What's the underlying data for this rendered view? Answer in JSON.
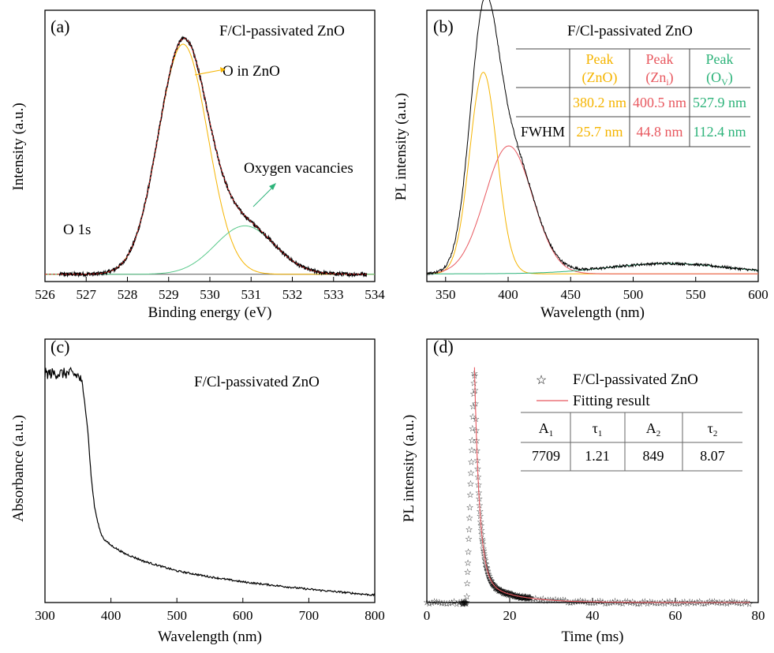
{
  "colors": {
    "black": "#000000",
    "orange": "#f5b400",
    "red": "#e8585f",
    "green": "#2db37a",
    "lightgreen": "#58c98a",
    "gray": "#555555",
    "darkred": "#cc2020"
  },
  "chart_data": [
    {
      "panel": "(a)",
      "type": "line",
      "title": "F/Cl-passivated ZnO",
      "xlabel": "Binding energy (eV)",
      "ylabel": "Intensity (a.u.)",
      "xlim": [
        526,
        534
      ],
      "ylim": [
        0,
        1.12
      ],
      "xticks": [
        526,
        527,
        528,
        529,
        530,
        531,
        532,
        533,
        534
      ],
      "annotations": {
        "o1s": "O 1s",
        "o_in_zno": "O in ZnO",
        "oxygen_vac": "Oxygen vacancies"
      },
      "components": [
        {
          "role": "O in ZnO",
          "color": "orange",
          "center": 529.35,
          "sigma": 0.6,
          "amp": 0.95
        },
        {
          "role": "Oxygen vacancies",
          "color": "lightgreen",
          "center": 530.85,
          "sigma": 0.72,
          "amp": 0.2
        }
      ],
      "baseline": 0.03,
      "series": [
        {
          "color": "black",
          "style": "noisy",
          "sum_of": [
            0,
            1
          ]
        },
        {
          "color": "darkred",
          "style": "dashed",
          "sum_of": [
            0,
            1
          ]
        }
      ]
    },
    {
      "panel": "(b)",
      "type": "line",
      "title": "F/Cl-passivated ZnO",
      "xlabel": "Wavelength (nm)",
      "ylabel": "PL intensity (a.u.)",
      "xlim": [
        335,
        600
      ],
      "ylim": [
        0,
        1.05
      ],
      "xticks": [
        350,
        400,
        450,
        500,
        550,
        600
      ],
      "components": [
        {
          "role": "Peak (ZnO)",
          "color": "orange",
          "center": 380.2,
          "fwhm": 25.7,
          "amp": 0.78
        },
        {
          "role": "Peak (Zni)",
          "color": "red",
          "center": 400.5,
          "fwhm": 44.8,
          "amp": 0.495
        },
        {
          "role": "Peak (Ov)",
          "color": "green",
          "center": 527.9,
          "fwhm": 112.4,
          "amp": 0.04
        }
      ],
      "series": [
        {
          "color": "black",
          "style": "noisy",
          "sum_of": [
            0,
            1,
            2
          ]
        }
      ],
      "table": {
        "header": [
          {
            "line1": "Peak",
            "line2": "(ZnO)",
            "sub": "",
            "color": "orange"
          },
          {
            "line1": "Peak",
            "line2": "(Zn",
            "sub": "i",
            "color": "red"
          },
          {
            "line1": "Peak",
            "line2": "(O",
            "sub": "V",
            "color": "green"
          }
        ],
        "rows": [
          {
            "label": "",
            "values": [
              "380.2 nm",
              "400.5 nm",
              "527.9 nm"
            ]
          },
          {
            "label": "FWHM",
            "values": [
              "25.7 nm",
              "44.8 nm",
              "112.4 nm"
            ]
          }
        ]
      }
    },
    {
      "panel": "(c)",
      "type": "line",
      "title": "F/Cl-passivated ZnO",
      "xlabel": "Wavelength (nm)",
      "ylabel": "Absorbance (a.u.)",
      "xlim": [
        300,
        800
      ],
      "ylim": [
        0,
        1.15
      ],
      "xticks": [
        300,
        400,
        500,
        600,
        700,
        800
      ],
      "points": [
        [
          300,
          1.0
        ],
        [
          310,
          1.0
        ],
        [
          320,
          1.0
        ],
        [
          330,
          1.0
        ],
        [
          340,
          1.0
        ],
        [
          350,
          0.99
        ],
        [
          355,
          0.97
        ],
        [
          360,
          0.88
        ],
        [
          365,
          0.75
        ],
        [
          370,
          0.55
        ],
        [
          375,
          0.42
        ],
        [
          380,
          0.35
        ],
        [
          385,
          0.3
        ],
        [
          390,
          0.275
        ],
        [
          400,
          0.25
        ],
        [
          420,
          0.215
        ],
        [
          450,
          0.18
        ],
        [
          500,
          0.138
        ],
        [
          550,
          0.112
        ],
        [
          600,
          0.09
        ],
        [
          650,
          0.074
        ],
        [
          700,
          0.058
        ],
        [
          750,
          0.045
        ],
        [
          800,
          0.032
        ]
      ],
      "series": [
        {
          "color": "black",
          "style": "noisy"
        }
      ]
    },
    {
      "panel": "(d)",
      "type": "scatter",
      "xlabel": "Time (ms)",
      "ylabel": "PL intensity (a.u.)",
      "xlim": [
        0,
        80
      ],
      "ylim": [
        0,
        1.12
      ],
      "xticks": [
        0,
        20,
        40,
        60,
        80
      ],
      "decay": {
        "t0": 11.5,
        "rise_start": 9.6,
        "A1": 7709,
        "tau1": 1.21,
        "A2": 849,
        "tau2": 8.07,
        "baseline": 0.0,
        "x_end": 78
      },
      "legend": [
        {
          "label": "F/Cl-passivated ZnO",
          "marker": "☆",
          "color": "black"
        },
        {
          "label": "Fitting result",
          "marker": "line",
          "color": "red"
        }
      ],
      "table": {
        "header": [
          {
            "base": "A",
            "sub": "1"
          },
          {
            "base": "τ",
            "sub": "1"
          },
          {
            "base": "A",
            "sub": "2"
          },
          {
            "base": "τ",
            "sub": "2"
          }
        ],
        "rows": [
          [
            "7709",
            "1.21",
            "849",
            "8.07"
          ]
        ]
      }
    }
  ]
}
